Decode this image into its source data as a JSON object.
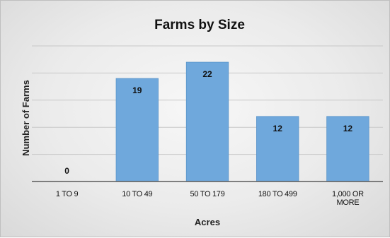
{
  "chart_data": {
    "type": "bar",
    "title": "Farms by Size",
    "xlabel": "Acres",
    "ylabel": "Number of Farms",
    "categories": [
      [
        "1 TO 9"
      ],
      [
        "10 TO 49"
      ],
      [
        "50 TO 179"
      ],
      [
        "180 TO 499"
      ],
      [
        "1,000 OR",
        "MORE"
      ]
    ],
    "values": [
      0,
      19,
      22,
      12,
      12
    ],
    "data_labels": [
      "0",
      "19",
      "22",
      "12",
      "12"
    ],
    "ylim": [
      0,
      25
    ],
    "y_gridlines": [
      5,
      10,
      15,
      20,
      25
    ],
    "y_tick_labels_shown": false,
    "grid": true,
    "bar_color": "#6fa8dc",
    "legend": "none"
  }
}
